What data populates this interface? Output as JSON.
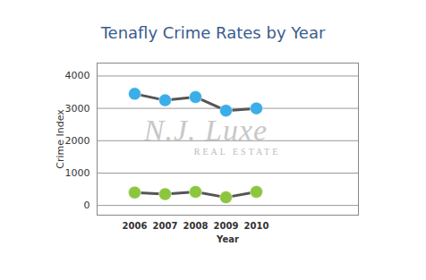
{
  "chart_data": {
    "type": "line",
    "title": "Tenafly Crime Rates by Year",
    "x_label": "Year",
    "y_label": "Crime Index",
    "categories": [
      "2006",
      "2007",
      "2008",
      "2009",
      "2010"
    ],
    "series": [
      {
        "color": "#3aaee8",
        "marker": "circle",
        "values": [
          3450,
          3250,
          3350,
          2930,
          3000
        ]
      },
      {
        "color": "#8cc63f",
        "marker": "circle",
        "values": [
          400,
          350,
          420,
          250,
          420
        ]
      }
    ],
    "ylim": [
      -300,
      4400
    ],
    "yticks": [
      0,
      1000,
      2000,
      3000,
      4000
    ],
    "grid": true,
    "annotations": [
      "N.J. Luxe",
      "REAL ESTATE"
    ]
  }
}
